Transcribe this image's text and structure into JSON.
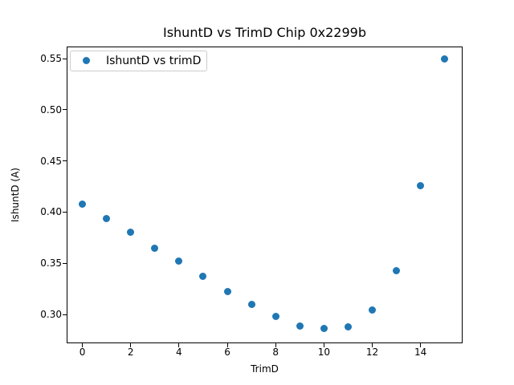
{
  "chart_data": {
    "type": "scatter",
    "title": "IshuntD vs TrimD Chip 0x2299b",
    "xlabel": "TrimD",
    "ylabel": "IshuntD (A)",
    "legend": {
      "label": "IshuntD vs trimD",
      "position": "upper left"
    },
    "marker_color": "#1f77b4",
    "x": [
      0,
      1,
      2,
      3,
      4,
      5,
      6,
      7,
      8,
      9,
      10,
      11,
      12,
      13,
      14,
      15
    ],
    "y": [
      0.408,
      0.394,
      0.38,
      0.365,
      0.352,
      0.337,
      0.322,
      0.31,
      0.298,
      0.289,
      0.286,
      0.288,
      0.304,
      0.343,
      0.426,
      0.55
    ],
    "xticks": [
      "0",
      "2",
      "4",
      "6",
      "8",
      "10",
      "12",
      "14"
    ],
    "yticks": [
      "0.30",
      "0.35",
      "0.40",
      "0.45",
      "0.50",
      "0.55"
    ],
    "xlim": [
      -0.65,
      15.74
    ],
    "ylim": [
      0.2718,
      0.5618
    ],
    "grid": false,
    "axis_color": "#000000",
    "background": "#ffffff"
  }
}
